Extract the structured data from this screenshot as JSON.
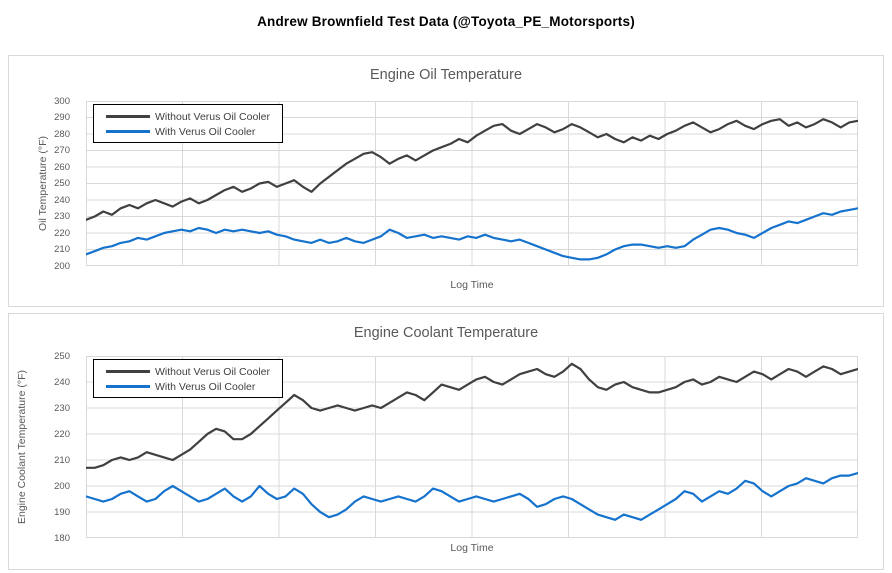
{
  "page": {
    "title": "Andrew Brownfield Test Data (@Toyota_PE_Motorsports)"
  },
  "colors": {
    "series_without": "#404040",
    "series_with": "#1673CD",
    "gridline": "#D9D9D9",
    "panel_border": "#D9D9D9",
    "axis_text": "#595959",
    "chart_title_text": "#595959",
    "legend_border": "#000000",
    "legend_text": "#404040",
    "page_title_text": "#000000"
  },
  "chart_data": [
    {
      "type": "line",
      "title": "Engine Oil Temperature",
      "xlabel": "Log Time",
      "ylabel": "Oil Temperature (°F)",
      "ylim": [
        200,
        300
      ],
      "yticks": [
        300,
        290,
        280,
        270,
        260,
        250,
        240,
        230,
        220,
        210,
        200
      ],
      "x_gridline_intervals": 8,
      "x_tick_labels_visible": false,
      "grid": true,
      "legend_position": "top-left",
      "series": [
        {
          "name": "Without Verus Oil Cooler",
          "color_key": "series_without",
          "values": [
            228,
            230,
            233,
            231,
            235,
            237,
            235,
            238,
            240,
            238,
            236,
            239,
            241,
            238,
            240,
            243,
            246,
            248,
            245,
            247,
            250,
            251,
            248,
            250,
            252,
            248,
            245,
            250,
            254,
            258,
            262,
            265,
            268,
            269,
            266,
            262,
            265,
            267,
            264,
            267,
            270,
            272,
            274,
            277,
            275,
            279,
            282,
            285,
            286,
            282,
            280,
            283,
            286,
            284,
            281,
            283,
            286,
            284,
            281,
            278,
            280,
            277,
            275,
            278,
            276,
            279,
            277,
            280,
            282,
            285,
            287,
            284,
            281,
            283,
            286,
            288,
            285,
            283,
            286,
            288,
            289,
            285,
            287,
            284,
            286,
            289,
            287,
            284,
            287,
            288
          ]
        },
        {
          "name": "With Verus Oil Cooler",
          "color_key": "series_with",
          "values": [
            207,
            209,
            211,
            212,
            214,
            215,
            217,
            216,
            218,
            220,
            221,
            222,
            221,
            223,
            222,
            220,
            222,
            221,
            222,
            221,
            220,
            221,
            219,
            218,
            216,
            215,
            214,
            216,
            214,
            215,
            217,
            215,
            214,
            216,
            218,
            222,
            220,
            217,
            218,
            219,
            217,
            218,
            217,
            216,
            218,
            217,
            219,
            217,
            216,
            215,
            216,
            214,
            212,
            210,
            208,
            206,
            205,
            204,
            204,
            205,
            207,
            210,
            212,
            213,
            213,
            212,
            211,
            212,
            211,
            212,
            216,
            219,
            222,
            223,
            222,
            220,
            219,
            217,
            220,
            223,
            225,
            227,
            226,
            228,
            230,
            232,
            231,
            233,
            234,
            235
          ]
        }
      ]
    },
    {
      "type": "line",
      "title": "Engine Coolant Temperature",
      "xlabel": "Log Time",
      "ylabel": "Engine Coolant Temperature (°F)",
      "ylim": [
        180,
        250
      ],
      "yticks": [
        250,
        240,
        230,
        220,
        210,
        200,
        190,
        180
      ],
      "x_gridline_intervals": 8,
      "x_tick_labels_visible": false,
      "grid": true,
      "legend_position": "top-left",
      "series": [
        {
          "name": "Without Verus Oil Cooler",
          "color_key": "series_without",
          "values": [
            207,
            207,
            208,
            210,
            211,
            210,
            211,
            213,
            212,
            211,
            210,
            212,
            214,
            217,
            220,
            222,
            221,
            218,
            218,
            220,
            223,
            226,
            229,
            232,
            235,
            233,
            230,
            229,
            230,
            231,
            230,
            229,
            230,
            231,
            230,
            232,
            234,
            236,
            235,
            233,
            236,
            239,
            238,
            237,
            239,
            241,
            242,
            240,
            239,
            241,
            243,
            244,
            245,
            243,
            242,
            244,
            247,
            245,
            241,
            238,
            237,
            239,
            240,
            238,
            237,
            236,
            236,
            237,
            238,
            240,
            241,
            239,
            240,
            242,
            241,
            240,
            242,
            244,
            243,
            241,
            243,
            245,
            244,
            242,
            244,
            246,
            245,
            243,
            244,
            245
          ]
        },
        {
          "name": "With Verus Oil Cooler",
          "color_key": "series_with",
          "values": [
            196,
            195,
            194,
            195,
            197,
            198,
            196,
            194,
            195,
            198,
            200,
            198,
            196,
            194,
            195,
            197,
            199,
            196,
            194,
            196,
            200,
            197,
            195,
            196,
            199,
            197,
            193,
            190,
            188,
            189,
            191,
            194,
            196,
            195,
            194,
            195,
            196,
            195,
            194,
            196,
            199,
            198,
            196,
            194,
            195,
            196,
            195,
            194,
            195,
            196,
            197,
            195,
            192,
            193,
            195,
            196,
            195,
            193,
            191,
            189,
            188,
            187,
            189,
            188,
            187,
            189,
            191,
            193,
            195,
            198,
            197,
            194,
            196,
            198,
            197,
            199,
            202,
            201,
            198,
            196,
            198,
            200,
            201,
            203,
            202,
            201,
            203,
            204,
            204,
            205
          ]
        }
      ]
    }
  ]
}
